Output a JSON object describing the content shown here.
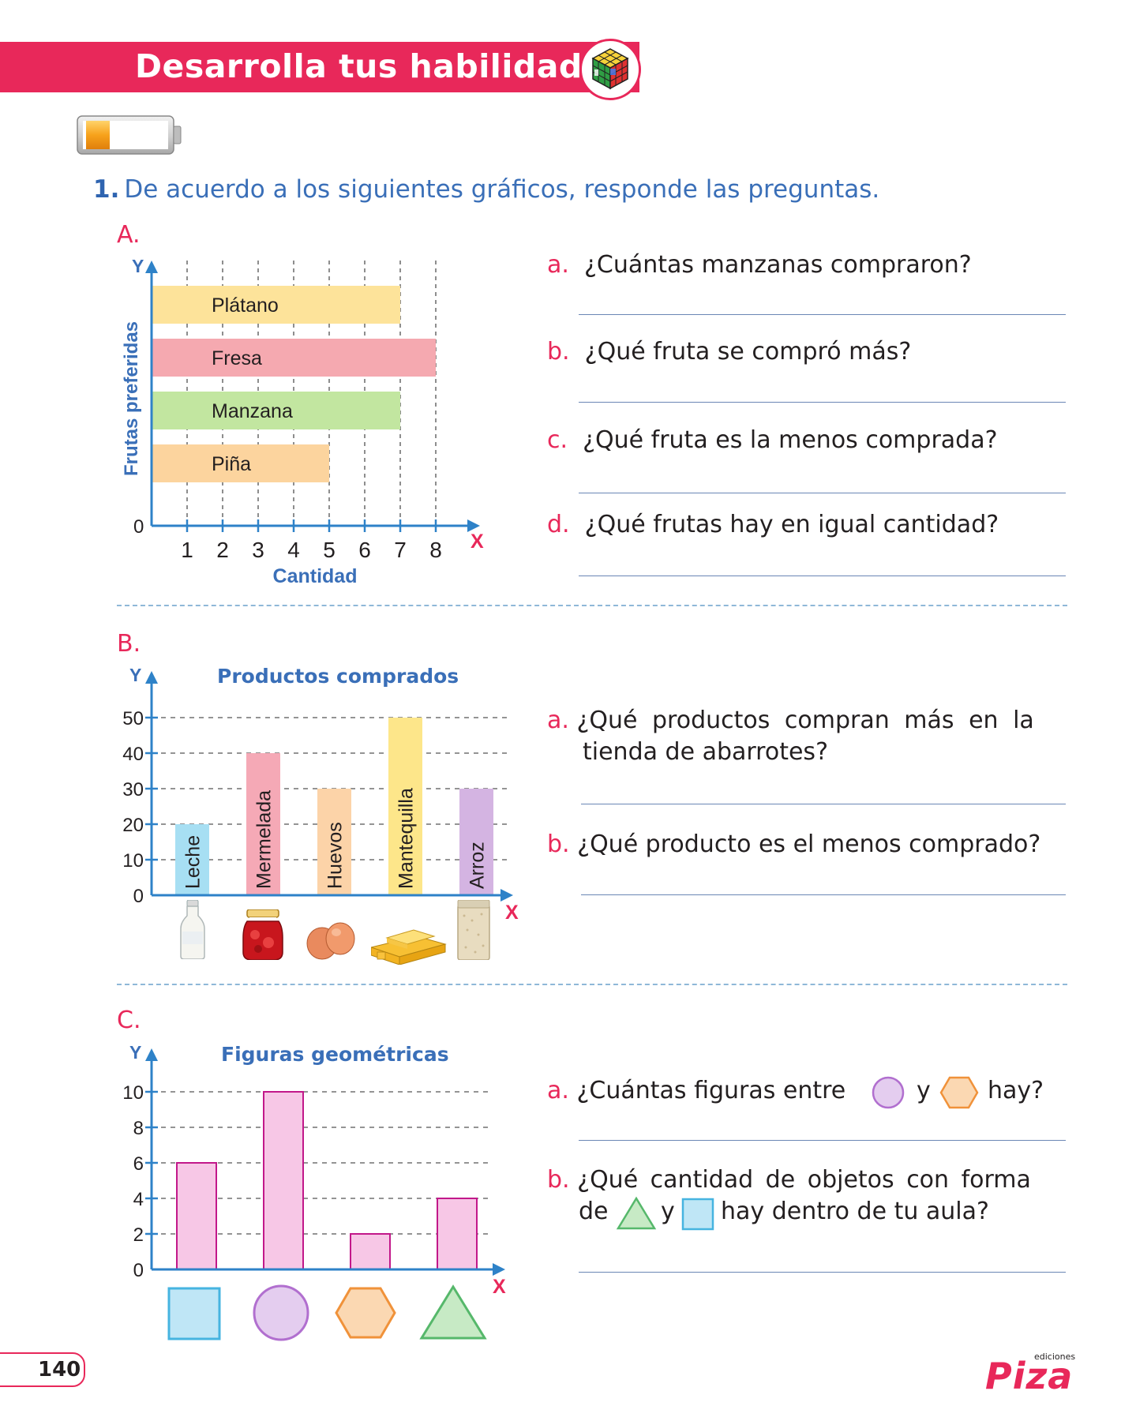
{
  "header": {
    "title": "Desarrolla tus habilidades",
    "badge_icon": "rubiks-cube-icon",
    "level_icon": "battery-low-icon"
  },
  "exercise": {
    "number": "1.",
    "instruction": "De acuerdo a los siguientes gráficos, responde las preguntas."
  },
  "section_a": {
    "letter": "A.",
    "questions": [
      {
        "letter": "a.",
        "text": "¿Cuántas manzanas compraron?"
      },
      {
        "letter": "b.",
        "text": "¿Qué fruta se compró más?"
      },
      {
        "letter": "c.",
        "text": "¿Qué fruta es la menos comprada?"
      },
      {
        "letter": "d.",
        "text": "¿Qué frutas hay en igual cantidad?"
      }
    ]
  },
  "section_b": {
    "letter": "B.",
    "questions": [
      {
        "letter": "a.",
        "text_line1": "¿Qué productos compran más en la",
        "text_line2": "tienda de abarrotes?"
      },
      {
        "letter": "b.",
        "text": "¿Qué producto es el menos comprado?"
      }
    ],
    "product_icons": [
      "milk-bottle-icon",
      "jam-jar-icon",
      "eggs-icon",
      "butter-icon",
      "rice-bag-icon"
    ]
  },
  "section_c": {
    "letter": "C.",
    "questions": [
      {
        "letter": "a.",
        "text_part1": "¿Cuántas figuras entre",
        "text_and": "y",
        "text_part2": "hay?"
      },
      {
        "letter": "b.",
        "text_line1": "¿Qué cantidad de objetos con forma",
        "text_de": "de",
        "text_y": "y",
        "text_line2": "hay dentro de tu aula?"
      }
    ]
  },
  "chart_data": [
    {
      "type": "bar",
      "orientation": "horizontal",
      "title": "",
      "xlabel": "Cantidad",
      "ylabel": "Frutas preferidas",
      "x_axis_letter": "X",
      "y_axis_letter": "Y",
      "origin_label": "0",
      "categories": [
        "Plátano",
        "Fresa",
        "Manzana",
        "Piña"
      ],
      "values": [
        7,
        8,
        7,
        5
      ],
      "colors": [
        "#fde39a",
        "#f5a9b0",
        "#c2e6a0",
        "#fcd49e"
      ],
      "xlim": [
        0,
        8
      ],
      "xticks": [
        "1",
        "2",
        "3",
        "4",
        "5",
        "6",
        "7",
        "8"
      ],
      "grid": true
    },
    {
      "type": "bar",
      "orientation": "vertical",
      "title": "Productos comprados",
      "x_axis_letter": "X",
      "y_axis_letter": "Y",
      "categories": [
        "Leche",
        "Mermelada",
        "Huevos",
        "Mantequilla",
        "Arroz"
      ],
      "values": [
        20,
        40,
        30,
        50,
        30
      ],
      "colors": [
        "#a7dff3",
        "#f5a9b6",
        "#fcd3a8",
        "#fde68a",
        "#d4b4e2"
      ],
      "ylim": [
        0,
        50
      ],
      "yticks": [
        "0",
        "10",
        "20",
        "30",
        "40",
        "50"
      ],
      "grid": true
    },
    {
      "type": "bar",
      "orientation": "vertical",
      "title": "Figuras geométricas",
      "x_axis_letter": "X",
      "y_axis_letter": "Y",
      "categories": [
        "cuadrado",
        "círculo",
        "hexágono",
        "triángulo"
      ],
      "category_icons": [
        "square-icon",
        "circle-icon",
        "hexagon-icon",
        "triangle-icon"
      ],
      "values": [
        6,
        10,
        2,
        4
      ],
      "colors": [
        "#f7c7e6"
      ],
      "ylim": [
        0,
        10
      ],
      "yticks": [
        "0",
        "2",
        "4",
        "6",
        "8",
        "10"
      ],
      "grid": true
    }
  ],
  "footer": {
    "page_number": "140",
    "publisher_word": "Piza",
    "publisher_label": "ediciones"
  }
}
